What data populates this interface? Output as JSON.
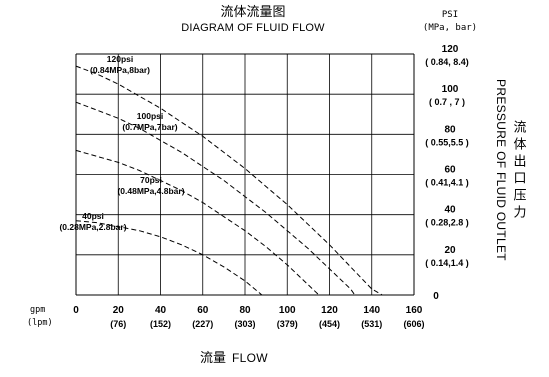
{
  "chart_data": {
    "type": "line",
    "title": "流体流量图",
    "subtitle": "DIAGRAM OF FLUID FLOW",
    "xlabel_cn": "流量",
    "xlabel_en": "FLOW",
    "ylabel_en": "PRESSURE OF FLUID OUTLET",
    "ylabel_cn": "流体出口压力",
    "y_unit": "PSI",
    "y_unit_sub": "(MPa, bar)",
    "x_unit": "gpm",
    "x_unit_sub": "(lpm)",
    "xlim": [
      0,
      160
    ],
    "ylim": [
      0,
      120
    ],
    "grid": true,
    "x_ticks": [
      {
        "value": 0,
        "label": "0",
        "sub": ""
      },
      {
        "value": 20,
        "label": "20",
        "sub": "(76)"
      },
      {
        "value": 40,
        "label": "40",
        "sub": "(152)"
      },
      {
        "value": 60,
        "label": "60",
        "sub": "(227)"
      },
      {
        "value": 80,
        "label": "80",
        "sub": "(303)"
      },
      {
        "value": 100,
        "label": "100",
        "sub": "(379)"
      },
      {
        "value": 120,
        "label": "120",
        "sub": "(454)"
      },
      {
        "value": 140,
        "label": "140",
        "sub": "(531)"
      },
      {
        "value": 160,
        "label": "160",
        "sub": "(606)"
      }
    ],
    "y_ticks": [
      {
        "value": 0,
        "label": "0",
        "sub": ""
      },
      {
        "value": 20,
        "label": "20",
        "sub": "( 0.14,1.4 )"
      },
      {
        "value": 40,
        "label": "40",
        "sub": "( 0.28,2.8 )"
      },
      {
        "value": 60,
        "label": "60",
        "sub": "( 0.41,4.1 )"
      },
      {
        "value": 80,
        "label": "80",
        "sub": "( 0.55,5.5 )"
      },
      {
        "value": 100,
        "label": "100",
        "sub": "( 0.7 ,  7 )"
      },
      {
        "value": 120,
        "label": "120",
        "sub": "( 0.84, 8.4)"
      }
    ],
    "series": [
      {
        "name": "120psi",
        "label": "120psi",
        "label_sub": "(0.84MPa,8bar)",
        "x": [
          0,
          10,
          20,
          30,
          40,
          50,
          60,
          70,
          80,
          90,
          100,
          110,
          120,
          130,
          140,
          145
        ],
        "y": [
          114,
          110,
          105,
          99,
          93,
          86,
          79,
          71,
          63,
          54,
          45,
          35,
          25,
          14,
          3,
          0
        ]
      },
      {
        "name": "100psi",
        "label": "100psi",
        "label_sub": "(0.7MPa,7bar)",
        "x": [
          0,
          10,
          20,
          30,
          40,
          50,
          60,
          70,
          80,
          90,
          100,
          110,
          120,
          130,
          132
        ],
        "y": [
          96,
          92,
          88,
          83,
          77,
          71,
          64,
          57,
          49,
          41,
          32,
          23,
          13,
          3,
          0
        ]
      },
      {
        "name": "70psi",
        "label": "70psi",
        "label_sub": "(0.48MPa,4.8bar)",
        "x": [
          0,
          10,
          20,
          30,
          40,
          50,
          60,
          70,
          80,
          90,
          100,
          110,
          115
        ],
        "y": [
          72,
          69,
          66,
          62,
          57,
          52,
          46,
          39,
          32,
          24,
          15,
          5,
          0
        ]
      },
      {
        "name": "40psi",
        "label": "40psi",
        "label_sub": "(0.28MPa,2.8bar)",
        "x": [
          0,
          10,
          20,
          30,
          40,
          50,
          60,
          70,
          80,
          88
        ],
        "y": [
          37,
          36,
          34,
          32,
          29,
          25,
          20,
          14,
          7,
          0
        ]
      }
    ]
  }
}
